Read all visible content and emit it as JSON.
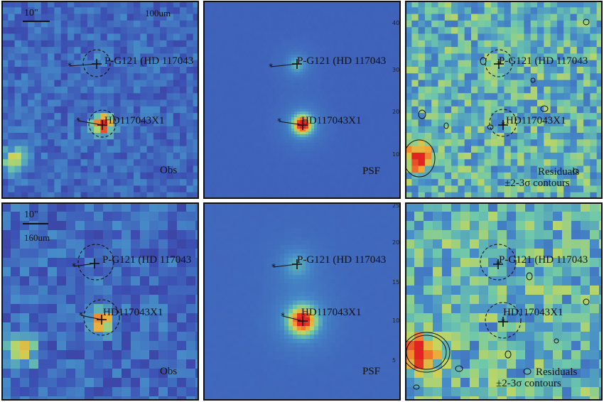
{
  "top_row": {
    "band_label": "100um",
    "scale_label": "10\"",
    "source1_label": "P-G121 (HD 117043",
    "source2_label": "HD117043X1",
    "obs_label": "Obs",
    "psf_label": "PSF",
    "residuals_label": "Residuals",
    "contours_label": "±2-3σ contours",
    "y_ticks": [
      "40",
      "30",
      "20",
      "10"
    ]
  },
  "bottom_row": {
    "band_label": "160um",
    "scale_label": "10\"",
    "source1_label": "P-G121 (HD 117043",
    "source2_label": "HD117043X1",
    "obs_label": "Obs",
    "psf_label": "PSF",
    "residuals_label": "Residuals",
    "contours_label": "±2-3σ contours",
    "y_ticks": [
      "25",
      "20",
      "15",
      "10",
      "5"
    ]
  },
  "colors": {
    "background_blue": "#4a6fbf",
    "deep_blue": "#3a3f9a",
    "residual_green": "#6ebf8a",
    "hot_red": "#e8302a",
    "hot_orange": "#f5a623"
  }
}
